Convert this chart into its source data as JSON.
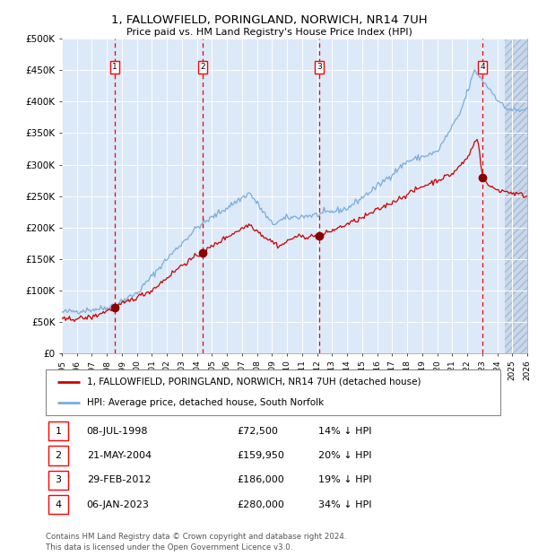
{
  "title": "1, FALLOWFIELD, PORINGLAND, NORWICH, NR14 7UH",
  "subtitle": "Price paid vs. HM Land Registry's House Price Index (HPI)",
  "xmin": 1995,
  "xmax": 2026,
  "ymin": 0,
  "ymax": 500000,
  "yticks": [
    0,
    50000,
    100000,
    150000,
    200000,
    250000,
    300000,
    350000,
    400000,
    450000,
    500000
  ],
  "ytick_labels": [
    "£0",
    "£50K",
    "£100K",
    "£150K",
    "£200K",
    "£250K",
    "£300K",
    "£350K",
    "£400K",
    "£450K",
    "£500K"
  ],
  "background_color": "#dce9f8",
  "hatch_color": "#c8d8ec",
  "grid_color": "#ffffff",
  "red_line_color": "#cc0000",
  "blue_line_color": "#7aaddb",
  "sale_marker_color": "#880000",
  "dashed_line_color": "#ee0000",
  "future_start": 2024.5,
  "transactions": [
    {
      "num": 1,
      "date_x": 1998.52,
      "price": 72500,
      "label": "08-JUL-1998",
      "price_str": "£72,500",
      "pct": "14% ↓ HPI"
    },
    {
      "num": 2,
      "date_x": 2004.38,
      "price": 159950,
      "label": "21-MAY-2004",
      "price_str": "£159,950",
      "pct": "20% ↓ HPI"
    },
    {
      "num": 3,
      "date_x": 2012.16,
      "price": 186000,
      "label": "29-FEB-2012",
      "price_str": "£186,000",
      "pct": "19% ↓ HPI"
    },
    {
      "num": 4,
      "date_x": 2023.01,
      "price": 280000,
      "label": "06-JAN-2023",
      "price_str": "£280,000",
      "pct": "34% ↓ HPI"
    }
  ],
  "legend_red_label": "1, FALLOWFIELD, PORINGLAND, NORWICH, NR14 7UH (detached house)",
  "legend_blue_label": "HPI: Average price, detached house, South Norfolk",
  "footnote": "Contains HM Land Registry data © Crown copyright and database right 2024.\nThis data is licensed under the Open Government Licence v3.0."
}
